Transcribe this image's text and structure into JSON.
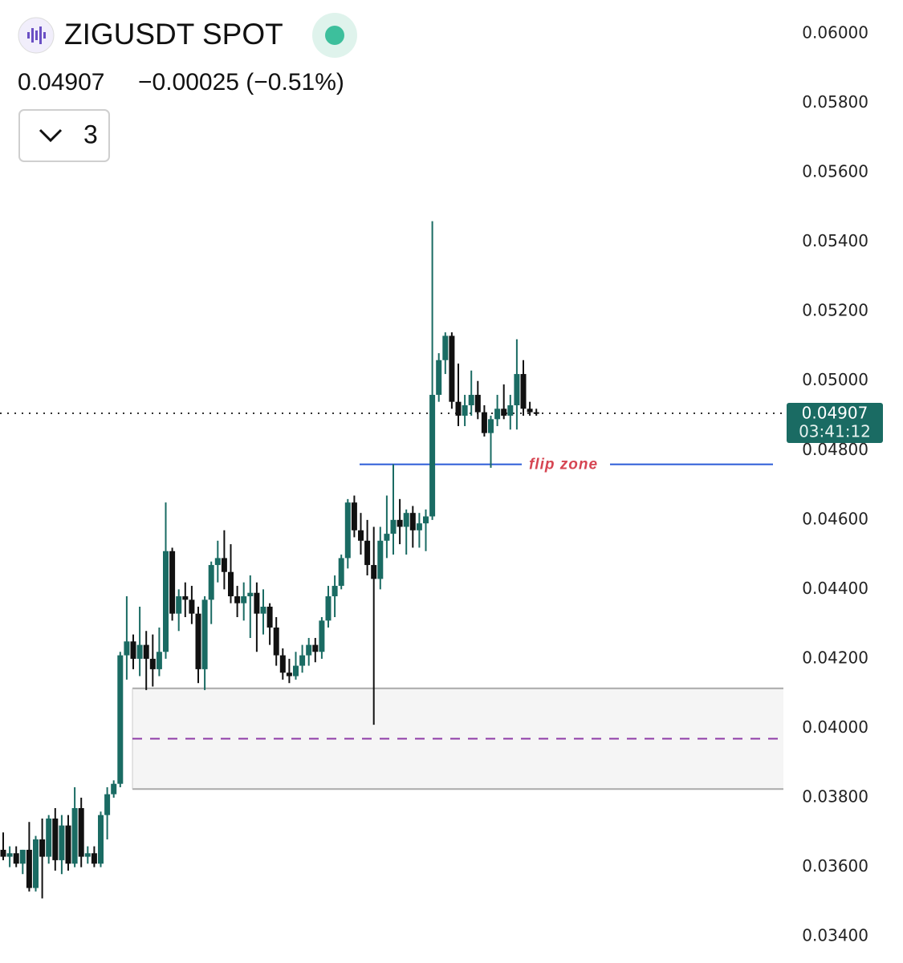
{
  "header": {
    "title": "ZIGUSDT SPOT",
    "price": "0.04907",
    "change": "−0.00025 (−0.51%)",
    "indicator_count": "3"
  },
  "chart_data": {
    "type": "candlestick",
    "up_color": "#1a6b63",
    "down_color": "#111111",
    "ylim": [
      0.03324,
      0.06097
    ],
    "yticks": [
      {
        "value": 0.06,
        "label": "0.06000"
      },
      {
        "value": 0.058,
        "label": "0.05800"
      },
      {
        "value": 0.056,
        "label": "0.05600"
      },
      {
        "value": 0.054,
        "label": "0.05400"
      },
      {
        "value": 0.052,
        "label": "0.05200"
      },
      {
        "value": 0.05,
        "label": "0.05000"
      },
      {
        "value": 0.048,
        "label": "0.04800"
      },
      {
        "value": 0.046,
        "label": "0.04600"
      },
      {
        "value": 0.044,
        "label": "0.04400"
      },
      {
        "value": 0.042,
        "label": "0.04200"
      },
      {
        "value": 0.04,
        "label": "0.04000"
      },
      {
        "value": 0.038,
        "label": "0.03800"
      },
      {
        "value": 0.036,
        "label": "0.03600"
      },
      {
        "value": 0.034,
        "label": "0.03400"
      }
    ],
    "open": [
      0.0365,
      0.0363,
      0.0364,
      0.0361,
      0.0365,
      0.0354,
      0.0368,
      0.0363,
      0.0374,
      0.0362,
      0.0372,
      0.0361,
      0.0377,
      0.0363,
      0.0364,
      0.0361,
      0.0375,
      0.0381,
      0.0384,
      0.0421,
      0.0425,
      0.042,
      0.0424,
      0.042,
      0.0417,
      0.0422,
      0.0451,
      0.0433,
      0.0438,
      0.0437,
      0.0433,
      0.0417,
      0.0437,
      0.0447,
      0.0449,
      0.0445,
      0.0438,
      0.0436,
      0.0438,
      0.0439,
      0.0433,
      0.0435,
      0.0429,
      0.0421,
      0.0416,
      0.0415,
      0.0418,
      0.0421,
      0.0424,
      0.0422,
      0.0431,
      0.0438,
      0.0441,
      0.0449,
      0.0465,
      0.0457,
      0.0454,
      0.0447,
      0.0443,
      0.0454,
      0.0456,
      0.046,
      0.0458,
      0.0462,
      0.0457,
      0.0459,
      0.0461,
      0.0496,
      0.0506,
      0.0513,
      0.0494,
      0.049,
      0.0493,
      0.0496,
      0.0491,
      0.0485,
      0.0489,
      0.0492,
      0.049,
      0.0493,
      0.0502,
      0.0492,
      0.0491
    ],
    "high": [
      0.037,
      0.0366,
      0.0366,
      0.0365,
      0.0373,
      0.0369,
      0.0374,
      0.0375,
      0.0377,
      0.0375,
      0.0375,
      0.0383,
      0.038,
      0.0366,
      0.0366,
      0.0376,
      0.0383,
      0.0385,
      0.0422,
      0.0438,
      0.0427,
      0.0435,
      0.0428,
      0.0427,
      0.0429,
      0.0465,
      0.0452,
      0.044,
      0.0442,
      0.0441,
      0.0435,
      0.0438,
      0.0448,
      0.0454,
      0.0457,
      0.0453,
      0.0441,
      0.0442,
      0.0444,
      0.0442,
      0.044,
      0.0436,
      0.0432,
      0.0423,
      0.042,
      0.0422,
      0.0424,
      0.0426,
      0.0426,
      0.0432,
      0.0441,
      0.0444,
      0.045,
      0.0466,
      0.0467,
      0.0462,
      0.046,
      0.0458,
      0.0458,
      0.0467,
      0.0476,
      0.0466,
      0.0463,
      0.0464,
      0.0462,
      0.0463,
      0.0546,
      0.0508,
      0.0514,
      0.0514,
      0.0505,
      0.0496,
      0.0503,
      0.05,
      0.0493,
      0.049,
      0.0496,
      0.0499,
      0.0496,
      0.0512,
      0.0506,
      0.0494,
      0.0492
    ],
    "low": [
      0.0362,
      0.036,
      0.036,
      0.0358,
      0.0353,
      0.0353,
      0.0351,
      0.0361,
      0.0359,
      0.0358,
      0.0359,
      0.036,
      0.036,
      0.0361,
      0.036,
      0.036,
      0.0368,
      0.038,
      0.0383,
      0.0414,
      0.0417,
      0.0415,
      0.0411,
      0.0412,
      0.0415,
      0.042,
      0.0431,
      0.0428,
      0.0432,
      0.043,
      0.0413,
      0.0411,
      0.043,
      0.0442,
      0.044,
      0.0436,
      0.0432,
      0.0431,
      0.0426,
      0.0422,
      0.0427,
      0.0424,
      0.0418,
      0.0414,
      0.0413,
      0.0414,
      0.0416,
      0.0418,
      0.0419,
      0.042,
      0.0429,
      0.0432,
      0.044,
      0.0446,
      0.0455,
      0.045,
      0.0444,
      0.0401,
      0.044,
      0.0449,
      0.045,
      0.0453,
      0.045,
      0.0452,
      0.0452,
      0.0451,
      0.046,
      0.0494,
      0.0502,
      0.0492,
      0.0487,
      0.0487,
      0.049,
      0.0489,
      0.0484,
      0.0475,
      0.0487,
      0.0489,
      0.0486,
      0.0486,
      0.049,
      0.049,
      0.049
    ],
    "close": [
      0.0363,
      0.0364,
      0.0361,
      0.0365,
      0.0354,
      0.0368,
      0.0363,
      0.0374,
      0.0362,
      0.0372,
      0.0361,
      0.0377,
      0.0363,
      0.0364,
      0.0361,
      0.0375,
      0.0381,
      0.0384,
      0.0421,
      0.0425,
      0.042,
      0.0424,
      0.042,
      0.0417,
      0.0422,
      0.0451,
      0.0433,
      0.0438,
      0.0437,
      0.0433,
      0.0417,
      0.0437,
      0.0447,
      0.0449,
      0.0445,
      0.0438,
      0.0436,
      0.0438,
      0.0439,
      0.0433,
      0.0435,
      0.0429,
      0.0421,
      0.0416,
      0.0415,
      0.0418,
      0.0421,
      0.0424,
      0.0422,
      0.0431,
      0.0438,
      0.0441,
      0.0449,
      0.0465,
      0.0457,
      0.0454,
      0.0447,
      0.0443,
      0.0454,
      0.0456,
      0.046,
      0.0458,
      0.0462,
      0.0457,
      0.0459,
      0.0461,
      0.0496,
      0.0506,
      0.0513,
      0.0494,
      0.049,
      0.0493,
      0.0496,
      0.0491,
      0.0485,
      0.0489,
      0.0492,
      0.049,
      0.0493,
      0.0502,
      0.0492,
      0.0491,
      0.04907
    ],
    "last_price": {
      "value": 0.04907,
      "label": "0.04907"
    },
    "countdown": "03:41:12",
    "flip_zone": {
      "label": "flip zone",
      "value": 0.0476
    },
    "zone": {
      "top": 0.04115,
      "bottom": 0.03825,
      "mid": 0.0397
    }
  }
}
